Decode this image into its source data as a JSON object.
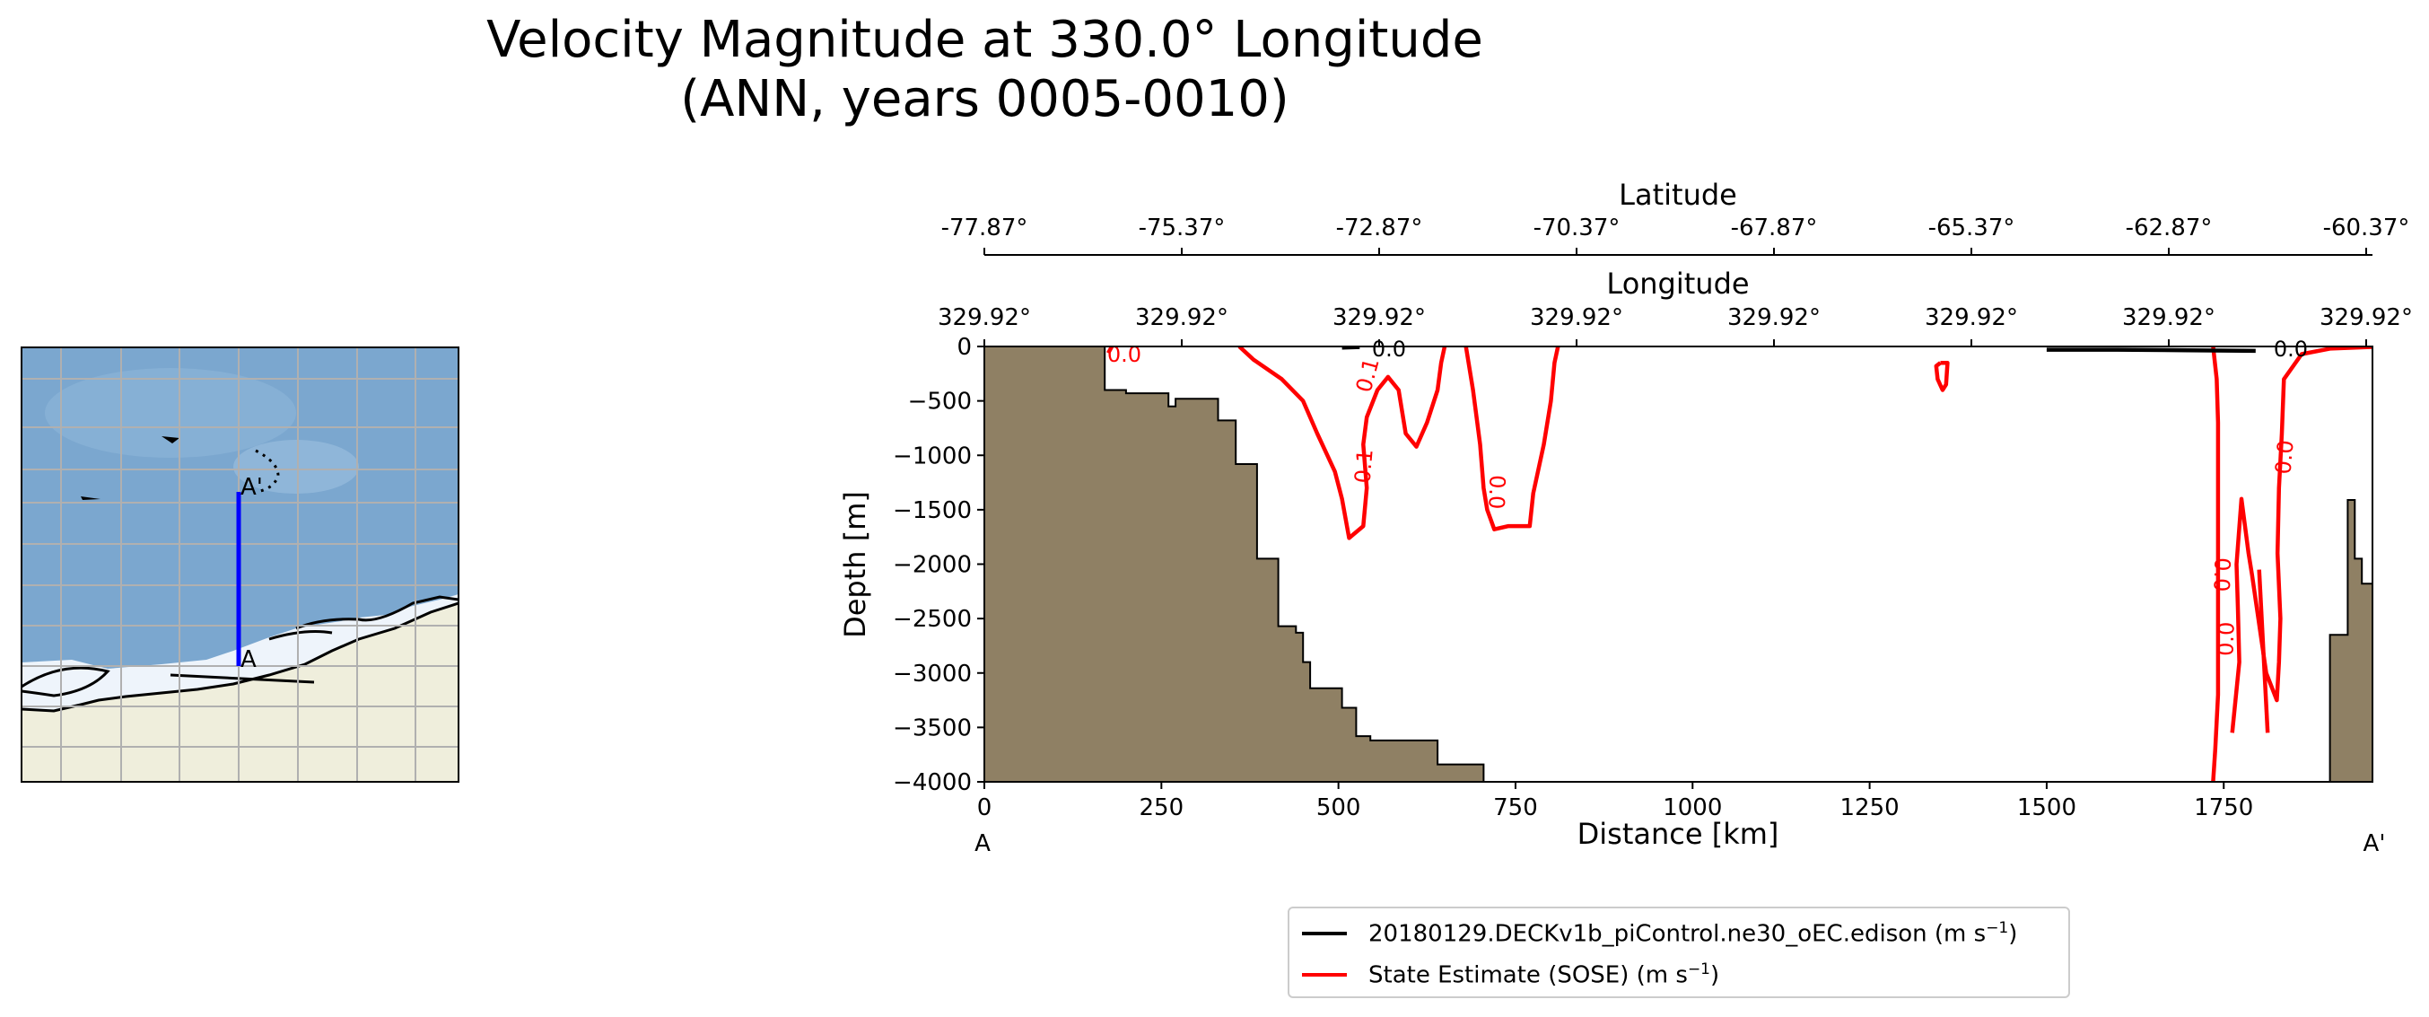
{
  "title": {
    "line1": "Velocity Magnitude at 330.0° Longitude",
    "line2": "(ANN, years 0005-0010)"
  },
  "colors": {
    "land": "#8f8064",
    "model_contour": "#000000",
    "obs_contour": "#ff0000",
    "map_ocean": "#7ba7cf",
    "map_ice": "#eef4fb",
    "map_land": "#efeedc",
    "map_grid": "#b0b0b0",
    "transect": "#0000ff"
  },
  "map": {
    "label_start": "A",
    "label_end": "A'"
  },
  "chart_data": {
    "type": "contour_section",
    "xlabel": "Distance [km]",
    "ylabel": "Depth [m]",
    "xlim": [
      0,
      1960
    ],
    "ylim": [
      -4000,
      0
    ],
    "x_ticks": [
      "0",
      "250",
      "500",
      "750",
      "1000",
      "1250",
      "1500",
      "1750"
    ],
    "y_ticks": [
      "0",
      "−500",
      "−1000",
      "−1500",
      "−2000",
      "−2500",
      "−3000",
      "−3500",
      "−4000"
    ],
    "x_end_labels": {
      "start": "A",
      "end": "A'"
    },
    "top_axis_longitude": {
      "label": "Longitude",
      "ticks": [
        "329.92°",
        "329.92°",
        "329.92°",
        "329.92°",
        "329.92°",
        "329.92°",
        "329.92°",
        "329.92°"
      ]
    },
    "top_axis_latitude": {
      "label": "Latitude",
      "ticks": [
        "-77.87°",
        "-75.37°",
        "-72.87°",
        "-70.37°",
        "-67.87°",
        "-65.37°",
        "-62.87°",
        "-60.37°"
      ]
    },
    "bathymetry_left": [
      [
        0,
        0
      ],
      [
        170,
        0
      ],
      [
        170,
        -400
      ],
      [
        200,
        -400
      ],
      [
        200,
        -430
      ],
      [
        260,
        -430
      ],
      [
        260,
        -550
      ],
      [
        270,
        -550
      ],
      [
        270,
        -480
      ],
      [
        330,
        -480
      ],
      [
        330,
        -680
      ],
      [
        355,
        -680
      ],
      [
        355,
        -1080
      ],
      [
        385,
        -1080
      ],
      [
        385,
        -1950
      ],
      [
        415,
        -1950
      ],
      [
        415,
        -2570
      ],
      [
        440,
        -2570
      ],
      [
        440,
        -2630
      ],
      [
        450,
        -2630
      ],
      [
        450,
        -2900
      ],
      [
        460,
        -2900
      ],
      [
        460,
        -3140
      ],
      [
        505,
        -3140
      ],
      [
        505,
        -3320
      ],
      [
        525,
        -3320
      ],
      [
        525,
        -3580
      ],
      [
        545,
        -3580
      ],
      [
        545,
        -3620
      ],
      [
        640,
        -3620
      ],
      [
        640,
        -3840
      ],
      [
        705,
        -3840
      ],
      [
        705,
        -4000
      ],
      [
        0,
        -4000
      ]
    ],
    "bathymetry_right": [
      [
        1900,
        -4000
      ],
      [
        1900,
        -2650
      ],
      [
        1925,
        -2650
      ],
      [
        1925,
        -1410
      ],
      [
        1935,
        -1410
      ],
      [
        1935,
        -1950
      ],
      [
        1945,
        -1950
      ],
      [
        1945,
        -2180
      ],
      [
        1960,
        -2180
      ],
      [
        1960,
        -4000
      ]
    ],
    "contours_obs": [
      {
        "level": "0.0",
        "points": [
          [
            180,
            0
          ],
          [
            175,
            -60
          ]
        ]
      },
      {
        "level": "0.1",
        "points": [
          [
            360,
            0
          ],
          [
            380,
            -120
          ],
          [
            420,
            -300
          ],
          [
            450,
            -500
          ],
          [
            470,
            -800
          ],
          [
            495,
            -1150
          ],
          [
            505,
            -1400
          ],
          [
            515,
            -1760
          ],
          [
            535,
            -1650
          ],
          [
            540,
            -1300
          ],
          [
            535,
            -900
          ],
          [
            540,
            -650
          ],
          [
            555,
            -400
          ],
          [
            570,
            -280
          ],
          [
            585,
            -400
          ],
          [
            595,
            -800
          ],
          [
            610,
            -920
          ],
          [
            625,
            -700
          ],
          [
            640,
            -400
          ],
          [
            645,
            -150
          ],
          [
            650,
            0
          ]
        ]
      },
      {
        "level": "0.0",
        "points": [
          [
            680,
            0
          ],
          [
            690,
            -400
          ],
          [
            700,
            -900
          ],
          [
            705,
            -1300
          ],
          [
            710,
            -1500
          ],
          [
            720,
            -1680
          ],
          [
            740,
            -1650
          ],
          [
            770,
            -1650
          ],
          [
            775,
            -1350
          ],
          [
            790,
            -900
          ],
          [
            800,
            -500
          ],
          [
            805,
            -150
          ],
          [
            810,
            0
          ]
        ]
      },
      {
        "level": "0.0",
        "points": [
          [
            1350,
            -150
          ],
          [
            1360,
            -150
          ],
          [
            1358,
            -350
          ],
          [
            1353,
            -400
          ],
          [
            1346,
            -300
          ],
          [
            1344,
            -180
          ],
          [
            1350,
            -150
          ]
        ]
      },
      {
        "level": "0.0",
        "points": [
          [
            1735,
            0
          ],
          [
            1740,
            -300
          ],
          [
            1742,
            -700
          ],
          [
            1742,
            -1500
          ],
          [
            1742,
            -2500
          ],
          [
            1742,
            -3200
          ],
          [
            1738,
            -3700
          ],
          [
            1735,
            -4000
          ]
        ]
      },
      {
        "level": "0.0",
        "points": [
          [
            1975,
            0
          ],
          [
            1900,
            -20
          ],
          [
            1860,
            -70
          ],
          [
            1835,
            -300
          ],
          [
            1832,
            -800
          ],
          [
            1828,
            -1300
          ],
          [
            1826,
            -1900
          ],
          [
            1830,
            -2500
          ],
          [
            1828,
            -2900
          ],
          [
            1825,
            -3250
          ],
          [
            1810,
            -3000
          ],
          [
            1790,
            -2100
          ],
          [
            1785,
            -1900
          ],
          [
            1775,
            -1400
          ],
          [
            1768,
            -2000
          ],
          [
            1770,
            -2400
          ],
          [
            1772,
            -2900
          ],
          [
            1762,
            -3550
          ]
        ]
      },
      {
        "level": "0.0",
        "points": [
          [
            1800,
            -2050
          ],
          [
            1812,
            -3550
          ]
        ]
      }
    ],
    "contours_model": [
      {
        "level": "0.0",
        "points": [
          [
            1500,
            -30
          ],
          [
            1600,
            -30
          ],
          [
            1700,
            -35
          ],
          [
            1795,
            -40
          ]
        ]
      },
      {
        "level": "0.0",
        "points": [
          [
            505,
            -10
          ],
          [
            530,
            -5
          ]
        ]
      }
    ],
    "legend": [
      {
        "label": "20180129.DECKv1b_piControl.ne30_oEC.edison (m s",
        "sup": "−1",
        "suffix": ")"
      },
      {
        "label": "State Estimate (SOSE) (m s",
        "sup": "−1",
        "suffix": ")"
      }
    ]
  }
}
